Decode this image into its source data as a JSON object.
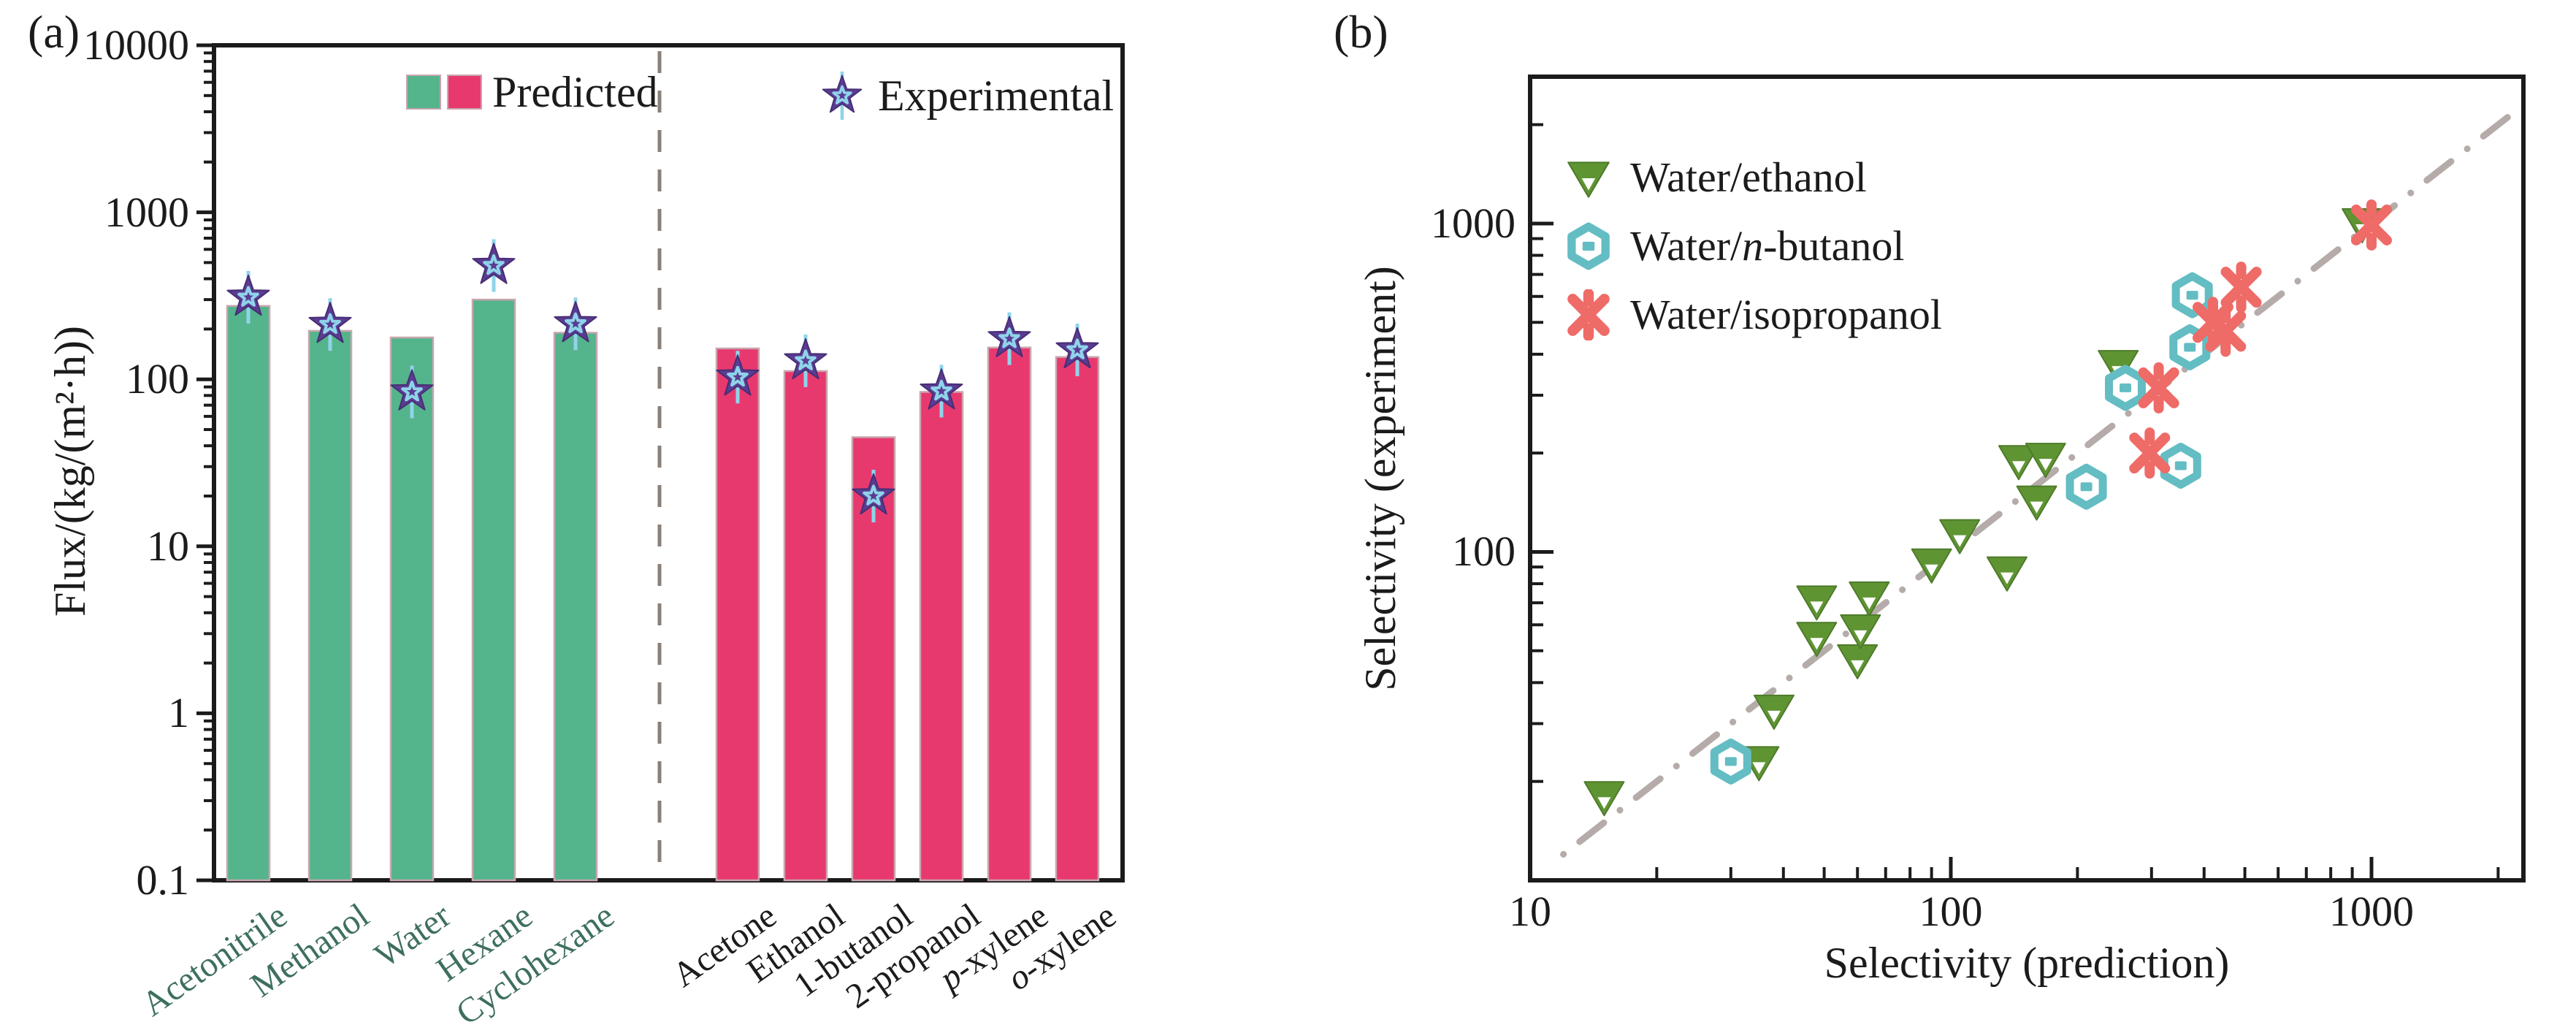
{
  "chart_data": [
    {
      "type": "bar",
      "tag": "(a)",
      "ylabel": "Flux/(kg/(m²·h))",
      "yscale": "log",
      "ylim": [
        0.1,
        10000
      ],
      "y_tick_labels": [
        "0.1",
        "1",
        "10",
        "100",
        "1000",
        "10000"
      ],
      "legend": {
        "predicted": "Predicted",
        "experimental": "Experimental"
      },
      "experimental_marker": {
        "name": "star",
        "fill": "#5b3c93",
        "accent": "#8fd4ea"
      },
      "divider_color": "#8b8078",
      "bar_edge_color": "#c9a6ae",
      "groups": [
        {
          "name": "organics",
          "series_color": "#54b48c",
          "label_color": "#3e6f60",
          "categories": [
            {
              "italic": "",
              "text": "Acetonitrile"
            },
            {
              "italic": "",
              "text": "Methanol"
            },
            {
              "italic": "",
              "text": "Water"
            },
            {
              "italic": "",
              "text": "Hexane"
            },
            {
              "italic": "",
              "text": "Cyclohexane"
            }
          ],
          "predicted": [
            275,
            195,
            178,
            300,
            190
          ],
          "experimental": [
            310,
            213,
            84,
            480,
            215
          ]
        },
        {
          "name": "alcohols-aromatics",
          "series_color": "#e8396f",
          "label_color": "#1c1c1c",
          "categories": [
            {
              "italic": "",
              "text": "Acetone"
            },
            {
              "italic": "",
              "text": "Ethanol"
            },
            {
              "italic": "",
              "text": "1-butanol"
            },
            {
              "italic": "",
              "text": "2-propanol"
            },
            {
              "italic": "p",
              "text": "-xylene"
            },
            {
              "italic": "o",
              "text": "-xylene"
            }
          ],
          "predicted": [
            153,
            112,
            45,
            84,
            155,
            136
          ],
          "experimental": [
            103,
            129,
            20,
            85,
            175,
            150
          ]
        }
      ]
    },
    {
      "type": "scatter",
      "tag": "(b)",
      "xlabel": "Selectivity (prediction)",
      "ylabel": "Selectivity (experiment)",
      "xscale": "log",
      "yscale": "log",
      "xlim": [
        10,
        2300
      ],
      "ylim": [
        10,
        2800
      ],
      "x_tick_values": [
        10,
        100,
        1000
      ],
      "x_tick_labels": [
        "10",
        "100",
        "1000"
      ],
      "y_tick_values": [
        100,
        1000
      ],
      "y_tick_labels": [
        "100",
        "1000"
      ],
      "parity_line": {
        "from": 12,
        "to": 2290,
        "color": "#b5acaa",
        "style": "dash-dot"
      },
      "series": [
        {
          "label": {
            "pre": "Water/",
            "italic": "",
            "post": "ethanol"
          },
          "marker": "triangle-down",
          "color": "#5f9433",
          "points": [
            [
              15,
              18
            ],
            [
              35,
              23
            ],
            [
              38,
              33
            ],
            [
              48,
              55
            ],
            [
              48,
              71
            ],
            [
              60,
              47
            ],
            [
              61,
              58
            ],
            [
              64,
              73
            ],
            [
              90,
              92
            ],
            [
              105,
              113
            ],
            [
              136,
              87
            ],
            [
              145,
              190
            ],
            [
              160,
              143
            ],
            [
              168,
              193
            ],
            [
              250,
              370
            ],
            [
              950,
              1000
            ]
          ]
        },
        {
          "label": {
            "pre": "Water/",
            "italic": "n",
            "post": "-butanol"
          },
          "marker": "hexagon",
          "color": "#63bdc3",
          "points": [
            [
              30,
              23
            ],
            [
              210,
              158
            ],
            [
              260,
              316
            ],
            [
              352,
              183
            ],
            [
              370,
              420
            ],
            [
              375,
              605
            ]
          ]
        },
        {
          "label": {
            "pre": "Water/",
            "italic": "",
            "post": "isopropanol"
          },
          "marker": "x-cross",
          "color": "#ee6b67",
          "points": [
            [
              297,
              200
            ],
            [
              312,
              316
            ],
            [
              420,
              500
            ],
            [
              450,
              470
            ],
            [
              490,
              640
            ],
            [
              1000,
              990
            ]
          ]
        }
      ]
    }
  ],
  "axis_color": "#1b1b1b"
}
